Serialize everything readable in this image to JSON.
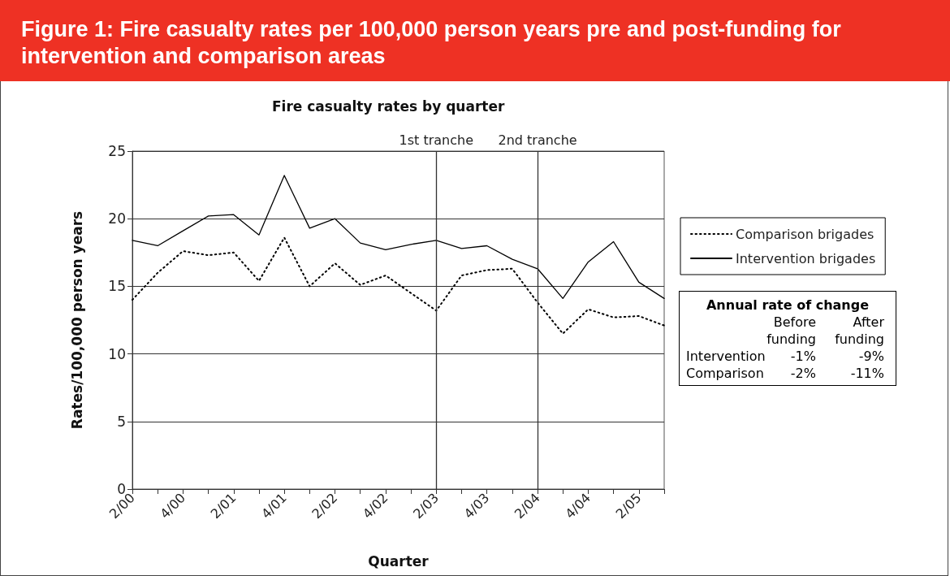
{
  "chart_data": {
    "type": "line",
    "title": "Figure 1: Fire casualty rates per 100,000 person years pre and post-funding for intervention and comparison areas",
    "subtitle": "Fire casualty rates by quarter",
    "xlabel": "Quarter",
    "ylabel": "Rates/100,000 person years",
    "categories": [
      "2/00",
      null,
      "4/00",
      null,
      "2/01",
      null,
      "4/01",
      null,
      "2/02",
      null,
      "4/02",
      null,
      "2/03",
      null,
      "4/03",
      null,
      "2/04",
      null,
      "4/04",
      null,
      "2/05",
      null
    ],
    "series": [
      {
        "name": "Comparison brigades",
        "color": "#000000",
        "line_style": "dotted",
        "values": [
          14.0,
          16.0,
          17.6,
          17.3,
          17.5,
          15.4,
          18.6,
          15.0,
          16.7,
          15.1,
          15.8,
          14.5,
          13.2,
          15.8,
          16.2,
          16.3,
          13.8,
          11.5,
          13.3,
          12.7,
          12.8,
          12.1
        ]
      },
      {
        "name": "Intervention brigades",
        "color": "#000000",
        "line_style": "solid",
        "values": [
          18.4,
          18.0,
          19.1,
          20.2,
          20.3,
          18.8,
          23.2,
          19.3,
          20.0,
          18.2,
          17.7,
          18.1,
          18.4,
          17.8,
          18.0,
          17.0,
          16.3,
          14.1,
          16.8,
          18.3,
          15.3,
          14.1
        ]
      }
    ],
    "ylim": [
      0,
      25
    ],
    "yticks": [
      0,
      5,
      10,
      15,
      20,
      25
    ],
    "grid": "y",
    "legend": "right",
    "marker": "none",
    "ref_lines": [
      {
        "axis": "x",
        "value": "2/03",
        "label": "1st tranche"
      },
      {
        "axis": "x",
        "value": "2/04",
        "label": "2nd tranche"
      }
    ],
    "annotations": [
      "Annual rate of change",
      "Before funding",
      "After funding",
      "Intervention",
      "-1%",
      "-9%",
      "Comparison",
      "-2%",
      "-11%"
    ]
  }
}
